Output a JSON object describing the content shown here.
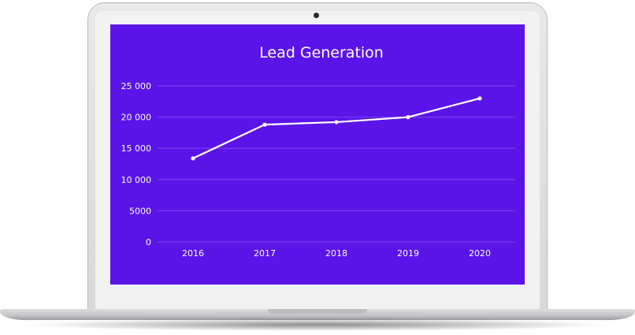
{
  "chart_data": {
    "type": "line",
    "title": "Lead Generation",
    "categories": [
      "2016",
      "2017",
      "2018",
      "2019",
      "2020"
    ],
    "series": [
      {
        "values": [
          13400,
          18800,
          19200,
          20000,
          23000
        ]
      }
    ],
    "yticks": [
      "0",
      "5000",
      "10 000",
      "15 000",
      "20 000",
      "25 000"
    ],
    "ylim": [
      0,
      25000
    ],
    "grid": true
  },
  "colors": {
    "background": "#5a14e8",
    "line": "#ffffff",
    "grid": "#7a4af0"
  }
}
